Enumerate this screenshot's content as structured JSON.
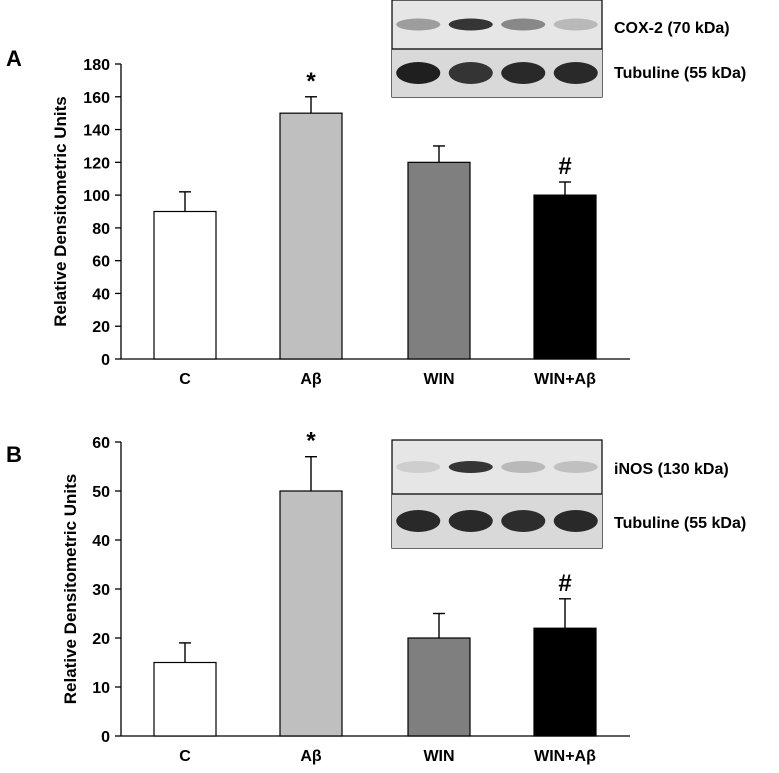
{
  "chart_data": [
    {
      "panel": "A",
      "type": "bar",
      "ylabel": "Relative Densitometric Units",
      "ylim": [
        0,
        180
      ],
      "yticks": [
        0,
        20,
        40,
        60,
        80,
        100,
        120,
        140,
        160,
        180
      ],
      "categories": [
        "C",
        "Aβ",
        "WIN",
        "WIN+Aβ"
      ],
      "values": [
        90,
        150,
        120,
        100
      ],
      "errors": [
        12,
        10,
        10,
        8
      ],
      "bar_colors": [
        "#ffffff",
        "#bfbfbf",
        "#7f7f7f",
        "#000000"
      ],
      "annotations": [
        "",
        "*",
        "",
        "#"
      ],
      "blot_labels": [
        "COX-2 (70 kDa)",
        "Tubuline (55 kDa)"
      ]
    },
    {
      "panel": "B",
      "type": "bar",
      "ylabel": "Relative Densitometric Units",
      "ylim": [
        0,
        60
      ],
      "yticks": [
        0,
        10,
        20,
        30,
        40,
        50,
        60
      ],
      "categories": [
        "C",
        "Aβ",
        "WIN",
        "WIN+Aβ"
      ],
      "values": [
        15,
        50,
        20,
        22
      ],
      "errors": [
        4,
        7,
        5,
        6
      ],
      "bar_colors": [
        "#ffffff",
        "#bfbfbf",
        "#7f7f7f",
        "#000000"
      ],
      "annotations": [
        "",
        "*",
        "",
        "#"
      ],
      "blot_labels": [
        "iNOS (130 kDa)",
        "Tubuline (55 kDa)"
      ]
    }
  ]
}
